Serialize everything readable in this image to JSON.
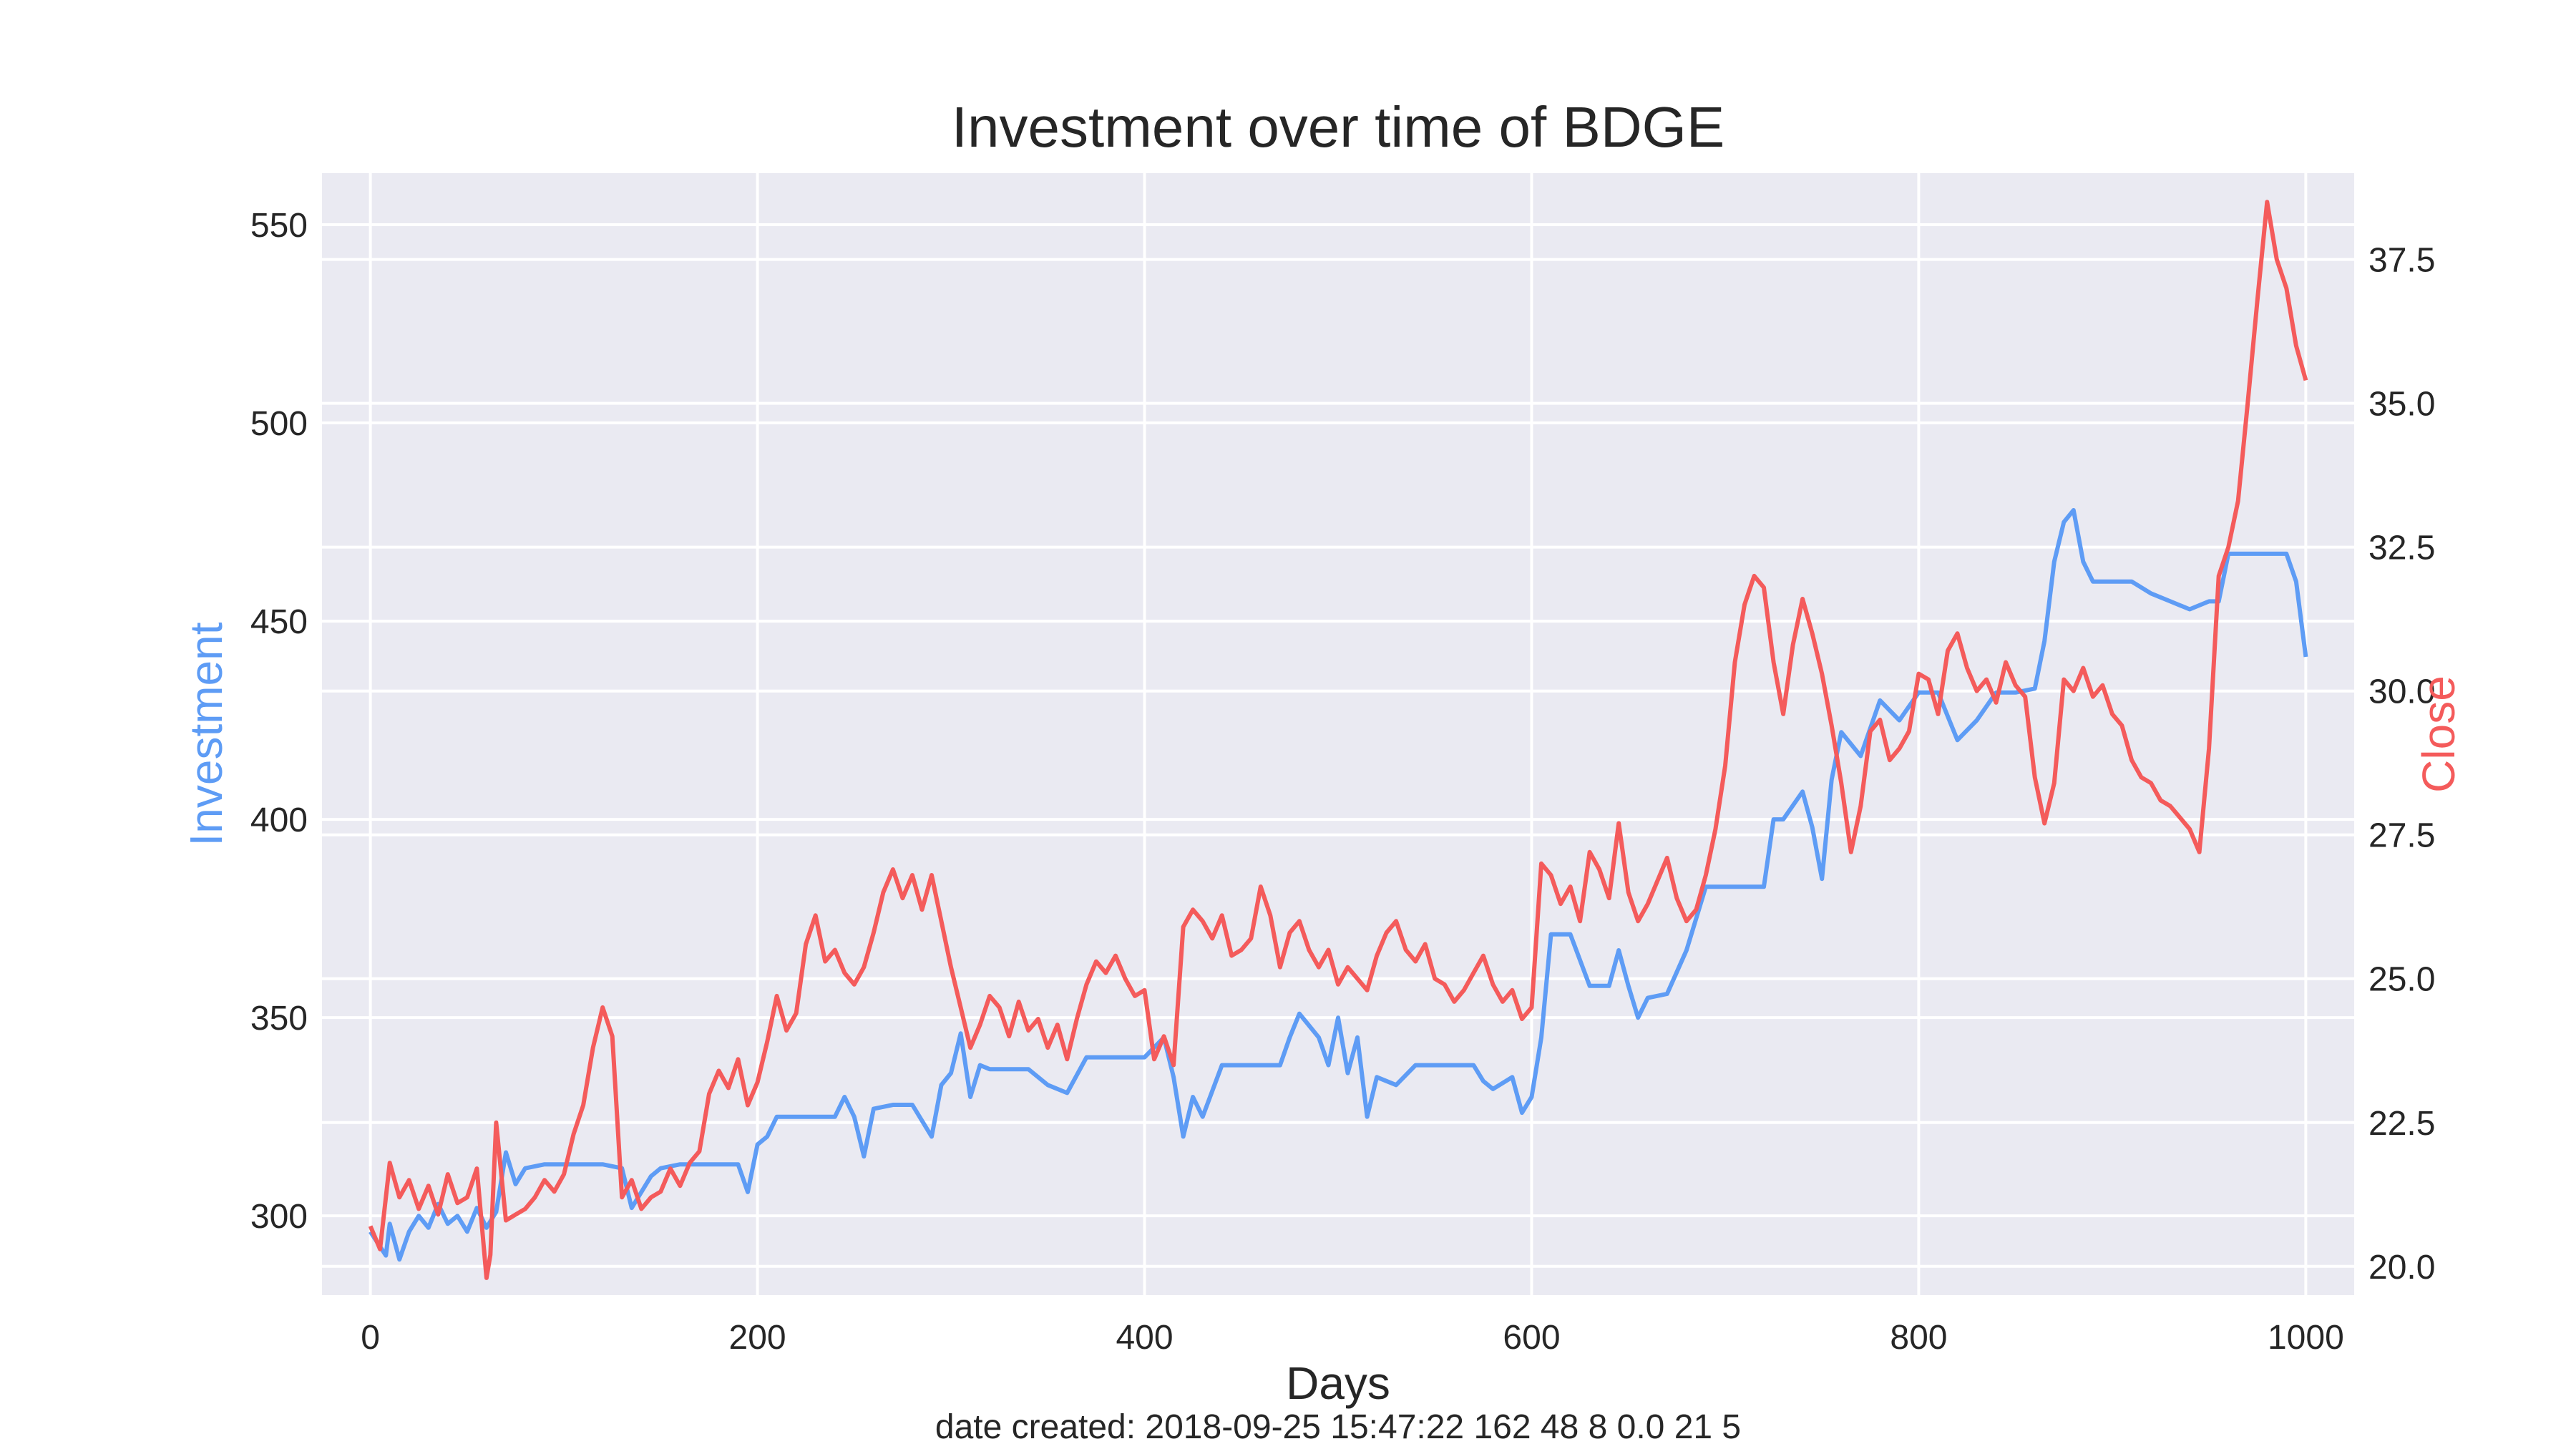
{
  "chart_data": {
    "type": "line",
    "title": "Investment over time of BDGE",
    "xlabel": "Days",
    "ylabel_left": "Investment",
    "ylabel_right": "Close",
    "footer": "date created: 2018-09-25 15:47:22 162 48 8 0.0 21 5",
    "xlim": [
      -25,
      1025
    ],
    "ylim_left": [
      280,
      563
    ],
    "ylim_right": [
      19.5,
      39.0
    ],
    "x_ticks": [
      0,
      200,
      400,
      600,
      800,
      1000
    ],
    "y_left_ticks": [
      300,
      350,
      400,
      450,
      500,
      550
    ],
    "y_right_ticks": [
      20.0,
      22.5,
      25.0,
      27.5,
      30.0,
      32.5,
      35.0,
      37.5
    ],
    "y_right_tick_labels": [
      "20.0",
      "22.5",
      "25.0",
      "27.5",
      "30.0",
      "32.5",
      "35.0",
      "37.5"
    ],
    "grid": true,
    "series": [
      {
        "name": "Investment",
        "axis": "left",
        "color": "#5e9cf5",
        "x": [
          0,
          8,
          10,
          15,
          20,
          25,
          30,
          35,
          40,
          45,
          50,
          55,
          60,
          65,
          70,
          75,
          80,
          90,
          100,
          110,
          120,
          130,
          135,
          140,
          145,
          150,
          160,
          170,
          180,
          190,
          195,
          200,
          205,
          210,
          220,
          240,
          245,
          250,
          255,
          260,
          270,
          280,
          290,
          295,
          300,
          305,
          310,
          315,
          320,
          330,
          340,
          350,
          360,
          370,
          380,
          390,
          400,
          410,
          415,
          420,
          425,
          430,
          440,
          450,
          460,
          470,
          475,
          480,
          485,
          490,
          495,
          500,
          505,
          510,
          515,
          520,
          530,
          540,
          550,
          560,
          570,
          575,
          580,
          590,
          595,
          600,
          605,
          610,
          620,
          630,
          640,
          645,
          650,
          655,
          660,
          670,
          680,
          690,
          700,
          710,
          720,
          725,
          730,
          740,
          745,
          750,
          755,
          760,
          770,
          780,
          790,
          800,
          810,
          820,
          830,
          840,
          850,
          860,
          865,
          870,
          875,
          880,
          885,
          890,
          900,
          910,
          920,
          930,
          940,
          950,
          955,
          960,
          970,
          980,
          990,
          995,
          1000
        ],
        "y": [
          296,
          290,
          298,
          289,
          296,
          300,
          297,
          303,
          298,
          300,
          296,
          302,
          297,
          301,
          316,
          308,
          312,
          313,
          313,
          313,
          313,
          312,
          302,
          306,
          310,
          312,
          313,
          313,
          313,
          313,
          306,
          318,
          320,
          325,
          325,
          325,
          330,
          325,
          315,
          327,
          328,
          328,
          320,
          333,
          336,
          346,
          330,
          338,
          337,
          337,
          337,
          333,
          331,
          340,
          340,
          340,
          340,
          345,
          335,
          320,
          330,
          325,
          338,
          338,
          338,
          338,
          345,
          351,
          348,
          345,
          338,
          350,
          336,
          345,
          325,
          335,
          333,
          338,
          338,
          338,
          338,
          334,
          332,
          335,
          326,
          330,
          345,
          371,
          371,
          358,
          358,
          367,
          358,
          350,
          355,
          356,
          367,
          383,
          383,
          383,
          383,
          400,
          400,
          407,
          398,
          385,
          410,
          422,
          416,
          430,
          425,
          432,
          432,
          420,
          425,
          432,
          432,
          433,
          445,
          465,
          475,
          478,
          465,
          460,
          460,
          460,
          457,
          455,
          453,
          455,
          455,
          467,
          467,
          467,
          467,
          460,
          441
        ]
      },
      {
        "name": "Close",
        "axis": "right",
        "color": "#f45b5b",
        "x": [
          0,
          5,
          10,
          15,
          20,
          25,
          30,
          35,
          40,
          45,
          50,
          55,
          60,
          62,
          65,
          70,
          75,
          80,
          85,
          90,
          95,
          100,
          105,
          110,
          115,
          120,
          125,
          130,
          135,
          140,
          145,
          150,
          155,
          160,
          165,
          170,
          175,
          180,
          185,
          190,
          195,
          200,
          205,
          210,
          215,
          220,
          225,
          230,
          235,
          240,
          245,
          250,
          255,
          260,
          265,
          270,
          275,
          280,
          285,
          290,
          295,
          300,
          305,
          310,
          315,
          320,
          325,
          330,
          335,
          340,
          345,
          350,
          355,
          360,
          365,
          370,
          375,
          380,
          385,
          390,
          395,
          400,
          405,
          410,
          415,
          420,
          425,
          430,
          435,
          440,
          445,
          450,
          455,
          460,
          465,
          470,
          475,
          480,
          485,
          490,
          495,
          500,
          505,
          510,
          515,
          520,
          525,
          530,
          535,
          540,
          545,
          550,
          555,
          560,
          565,
          570,
          575,
          580,
          585,
          590,
          595,
          600,
          605,
          610,
          615,
          620,
          625,
          630,
          635,
          640,
          645,
          650,
          655,
          660,
          665,
          670,
          675,
          680,
          685,
          690,
          695,
          700,
          705,
          710,
          715,
          720,
          725,
          730,
          735,
          740,
          745,
          750,
          755,
          760,
          765,
          770,
          775,
          780,
          785,
          790,
          795,
          800,
          805,
          810,
          815,
          820,
          825,
          830,
          835,
          840,
          845,
          850,
          855,
          860,
          865,
          870,
          875,
          880,
          885,
          890,
          895,
          900,
          905,
          910,
          915,
          920,
          925,
          930,
          935,
          940,
          945,
          950,
          955,
          960,
          965,
          970,
          975,
          980,
          985,
          990,
          995,
          1000
        ],
        "y": [
          20.7,
          20.3,
          21.8,
          21.2,
          21.5,
          21.0,
          21.4,
          20.9,
          21.6,
          21.1,
          21.2,
          21.7,
          19.8,
          20.2,
          22.5,
          20.8,
          20.9,
          21.0,
          21.2,
          21.5,
          21.3,
          21.6,
          22.3,
          22.8,
          23.8,
          24.5,
          24.0,
          21.2,
          21.5,
          21.0,
          21.2,
          21.3,
          21.7,
          21.4,
          21.8,
          22.0,
          23.0,
          23.4,
          23.1,
          23.6,
          22.8,
          23.2,
          23.9,
          24.7,
          24.1,
          24.4,
          25.6,
          26.1,
          25.3,
          25.5,
          25.1,
          24.9,
          25.2,
          25.8,
          26.5,
          26.9,
          26.4,
          26.8,
          26.2,
          26.8,
          26.0,
          25.2,
          24.5,
          23.8,
          24.2,
          24.7,
          24.5,
          24.0,
          24.6,
          24.1,
          24.3,
          23.8,
          24.2,
          23.6,
          24.3,
          24.9,
          25.3,
          25.1,
          25.4,
          25.0,
          24.7,
          24.8,
          23.6,
          24.0,
          23.5,
          25.9,
          26.2,
          26.0,
          25.7,
          26.1,
          25.4,
          25.5,
          25.7,
          26.6,
          26.1,
          25.2,
          25.8,
          26.0,
          25.5,
          25.2,
          25.5,
          24.9,
          25.2,
          25.0,
          24.8,
          25.4,
          25.8,
          26.0,
          25.5,
          25.3,
          25.6,
          25.0,
          24.9,
          24.6,
          24.8,
          25.1,
          25.4,
          24.9,
          24.6,
          24.8,
          24.3,
          24.5,
          27.0,
          26.8,
          26.3,
          26.6,
          26.0,
          27.2,
          26.9,
          26.4,
          27.7,
          26.5,
          26.0,
          26.3,
          26.7,
          27.1,
          26.4,
          26.0,
          26.2,
          26.8,
          27.6,
          28.7,
          30.5,
          31.5,
          32.0,
          31.8,
          30.5,
          29.6,
          30.8,
          31.6,
          31.0,
          30.3,
          29.4,
          28.4,
          27.2,
          28.0,
          29.3,
          29.5,
          28.8,
          29.0,
          29.3,
          30.3,
          30.2,
          29.6,
          30.7,
          31.0,
          30.4,
          30.0,
          30.2,
          29.8,
          30.5,
          30.1,
          29.9,
          28.5,
          27.7,
          28.4,
          30.2,
          30.0,
          30.4,
          29.9,
          30.1,
          29.6,
          29.4,
          28.8,
          28.5,
          28.4,
          28.1,
          28.0,
          27.8,
          27.6,
          27.2,
          29.0,
          32.0,
          32.5,
          33.3,
          35.0,
          36.8,
          38.5,
          37.5,
          37.0,
          36.0,
          35.4
        ]
      }
    ]
  }
}
